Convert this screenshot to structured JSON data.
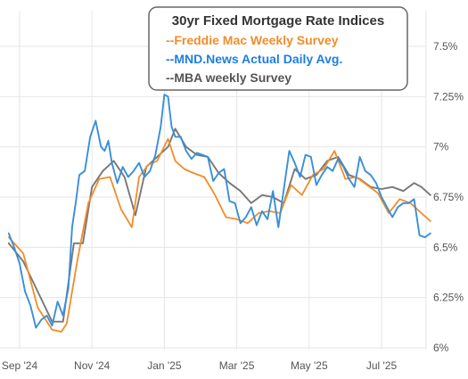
{
  "chart_data": {
    "type": "line",
    "title": "30yr Fixed Mortgage Rate Indices",
    "xlabel": "",
    "ylabel": "",
    "ylim": [
      6.0,
      7.6
    ],
    "yticks": [
      "6%",
      "6.25%",
      "6.5%",
      "6.75%",
      "7%",
      "7.25%",
      "7.5%"
    ],
    "ytick_values": [
      6.0,
      6.25,
      6.5,
      6.75,
      7.0,
      7.25,
      7.5
    ],
    "xticks": [
      "Sep '24",
      "Nov '24",
      "Jan '25",
      "Mar '25",
      "May '25",
      "Jul '25"
    ],
    "xtick_values": [
      0,
      2,
      4,
      6,
      8,
      10
    ],
    "xlim": [
      -0.3,
      11.5
    ],
    "grid": true,
    "legend": "top-center",
    "series": [
      {
        "name": "--Freddie Mac Weekly Survey",
        "color": "#F28C28",
        "x": [
          -0.3,
          0.1,
          0.5,
          0.9,
          1.15,
          1.3,
          1.6,
          1.9,
          2.2,
          2.5,
          2.8,
          3.1,
          3.3,
          3.55,
          3.8,
          4.1,
          4.3,
          4.55,
          4.8,
          5.1,
          5.4,
          5.7,
          6.0,
          6.3,
          6.6,
          6.9,
          7.2,
          7.5,
          7.8,
          8.1,
          8.4,
          8.7,
          9.0,
          9.3,
          9.6,
          9.9,
          10.2,
          10.5,
          10.8,
          11.1,
          11.35
        ],
        "y": [
          6.55,
          6.47,
          6.2,
          6.09,
          6.08,
          6.12,
          6.44,
          6.72,
          6.84,
          6.85,
          6.69,
          6.6,
          6.85,
          6.91,
          6.93,
          7.04,
          6.93,
          6.89,
          6.87,
          6.85,
          6.76,
          6.65,
          6.64,
          6.62,
          6.67,
          6.68,
          6.67,
          6.81,
          6.76,
          6.86,
          6.89,
          6.98,
          6.84,
          6.85,
          6.81,
          6.77,
          6.67,
          6.74,
          6.72,
          6.67,
          6.63
        ]
      },
      {
        "name": "--MND.News Actual Daily Avg.",
        "color": "#3A8FD9",
        "x": [
          -0.3,
          -0.15,
          0.0,
          0.15,
          0.3,
          0.45,
          0.6,
          0.75,
          0.9,
          1.05,
          1.2,
          1.35,
          1.45,
          1.55,
          1.65,
          1.8,
          1.95,
          2.1,
          2.25,
          2.35,
          2.45,
          2.55,
          2.7,
          2.85,
          3.0,
          3.15,
          3.3,
          3.45,
          3.6,
          3.75,
          3.9,
          4.0,
          4.1,
          4.2,
          4.3,
          4.45,
          4.6,
          4.75,
          4.9,
          5.05,
          5.2,
          5.35,
          5.5,
          5.65,
          5.8,
          5.95,
          6.1,
          6.25,
          6.4,
          6.55,
          6.7,
          6.85,
          7.0,
          7.15,
          7.3,
          7.45,
          7.6,
          7.75,
          7.9,
          8.05,
          8.2,
          8.35,
          8.5,
          8.65,
          8.8,
          8.95,
          9.1,
          9.25,
          9.4,
          9.55,
          9.7,
          9.85,
          10.0,
          10.15,
          10.3,
          10.45,
          10.6,
          10.75,
          10.9,
          11.05,
          11.2,
          11.35
        ],
        "y": [
          6.57,
          6.5,
          6.42,
          6.28,
          6.21,
          6.1,
          6.14,
          6.16,
          6.11,
          6.23,
          6.16,
          6.3,
          6.6,
          6.72,
          6.86,
          6.88,
          7.05,
          7.13,
          7.0,
          6.98,
          7.03,
          6.92,
          6.82,
          6.9,
          6.85,
          6.88,
          6.92,
          6.85,
          6.88,
          6.96,
          7.1,
          7.26,
          7.25,
          7.1,
          7.05,
          7.05,
          6.98,
          6.94,
          6.97,
          6.96,
          6.95,
          6.83,
          6.87,
          6.89,
          6.73,
          6.72,
          6.62,
          6.65,
          6.7,
          6.61,
          6.68,
          6.64,
          6.78,
          6.6,
          6.79,
          6.98,
          6.92,
          6.85,
          6.96,
          6.95,
          6.81,
          6.86,
          6.9,
          6.88,
          6.94,
          6.9,
          6.84,
          6.8,
          6.95,
          6.88,
          6.86,
          6.82,
          6.75,
          6.7,
          6.65,
          6.7,
          6.72,
          6.72,
          6.74,
          6.56,
          6.55,
          6.57
        ]
      },
      {
        "name": "--MBA weekly Survey",
        "color": "#777777",
        "x": [
          -0.3,
          0.1,
          0.5,
          0.9,
          1.2,
          1.5,
          1.75,
          2.0,
          2.3,
          2.6,
          2.9,
          3.2,
          3.5,
          3.8,
          4.1,
          4.3,
          4.6,
          4.9,
          5.2,
          5.5,
          5.8,
          6.1,
          6.4,
          6.7,
          7.0,
          7.3,
          7.6,
          7.9,
          8.2,
          8.5,
          8.8,
          9.1,
          9.4,
          9.7,
          10.0,
          10.3,
          10.6,
          10.9,
          11.1,
          11.35
        ],
        "y": [
          6.52,
          6.43,
          6.28,
          6.13,
          6.13,
          6.52,
          6.52,
          6.8,
          6.88,
          6.93,
          6.85,
          6.66,
          6.9,
          6.95,
          7.0,
          7.09,
          7.0,
          6.96,
          6.95,
          6.87,
          6.82,
          6.78,
          6.72,
          6.76,
          6.75,
          6.72,
          6.89,
          6.84,
          6.86,
          6.93,
          6.95,
          6.86,
          6.84,
          6.8,
          6.79,
          6.8,
          6.78,
          6.82,
          6.8,
          6.76
        ]
      }
    ]
  }
}
